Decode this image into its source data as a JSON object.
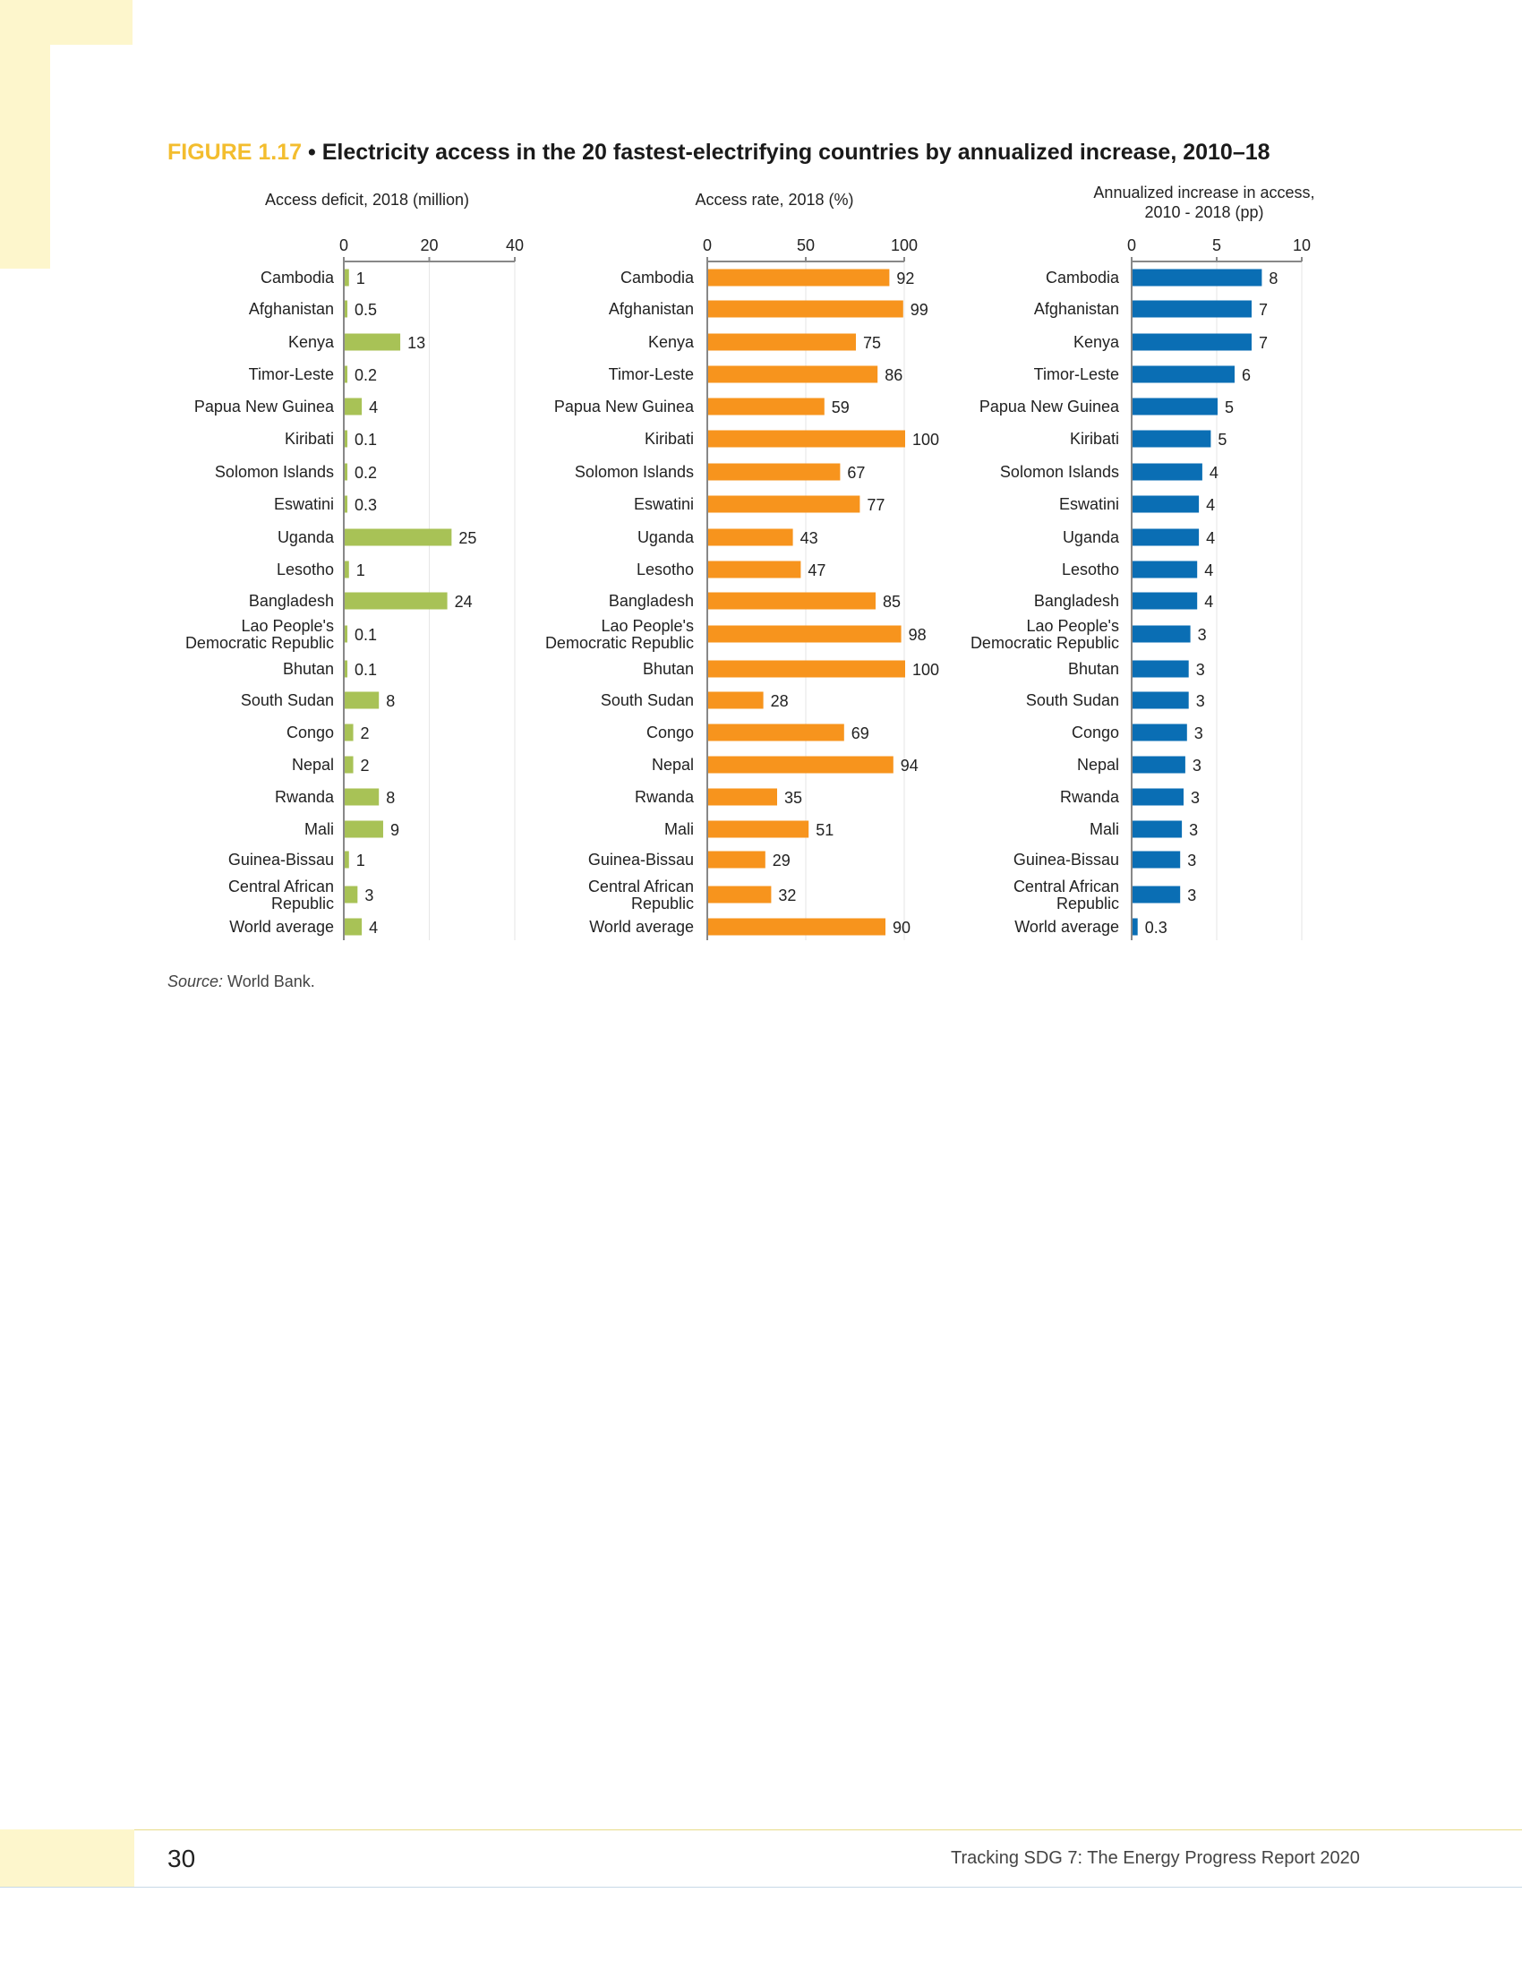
{
  "figure": {
    "number": "FIGURE 1.17",
    "separator": " • ",
    "title": "Electricity access in the 20 fastest-electrifying countries by annualized increase, 2010–18"
  },
  "colors": {
    "green": "#a8c256",
    "orange": "#f7941d",
    "blue": "#0a6eb4",
    "axis": "#888888",
    "grid": "#e6e6e6"
  },
  "categories": [
    "Cambodia",
    "Afghanistan",
    "Kenya",
    "Timor-Leste",
    "Papua New Guinea",
    "Kiribati",
    "Solomon Islands",
    "Eswatini",
    "Uganda",
    "Lesotho",
    "Bangladesh",
    "Lao People's Democratic Republic",
    "Bhutan",
    "South Sudan",
    "Congo",
    "Nepal",
    "Rwanda",
    "Mali",
    "Guinea-Bissau",
    "Central African Republic",
    "World average"
  ],
  "chart_data": [
    {
      "type": "bar",
      "orientation": "horizontal",
      "title": "Access deficit, 2018 (million)",
      "xlim": [
        0,
        40
      ],
      "ticks": [
        "0",
        "20",
        "40"
      ],
      "tick_values": [
        0,
        20,
        40
      ],
      "color": "#a8c256",
      "values": [
        1,
        0.5,
        13,
        0.2,
        4,
        0.1,
        0.2,
        0.3,
        25,
        1,
        24,
        0.1,
        0.1,
        8,
        2,
        2,
        8,
        9,
        1,
        3,
        4
      ],
      "labels": [
        "1",
        "0.5",
        "13",
        "0.2",
        "4",
        "0.1",
        "0.2",
        "0.3",
        "25",
        "1",
        "24",
        "0.1",
        "0.1",
        "8",
        "2",
        "2",
        "8",
        "9",
        "1",
        "3",
        "4"
      ]
    },
    {
      "type": "bar",
      "orientation": "horizontal",
      "title": "Access rate, 2018 (%)",
      "xlim": [
        0,
        100
      ],
      "ticks": [
        "0",
        "50",
        "100"
      ],
      "tick_values": [
        0,
        50,
        100
      ],
      "color": "#f7941d",
      "values": [
        92,
        99,
        75,
        86,
        59,
        100,
        67,
        77,
        43,
        47,
        85,
        98,
        100,
        28,
        69,
        94,
        35,
        51,
        29,
        32,
        90
      ],
      "labels": [
        "92",
        "99",
        "75",
        "86",
        "59",
        "100",
        "67",
        "77",
        "43",
        "47",
        "85",
        "98",
        "100",
        "28",
        "69",
        "94",
        "35",
        "51",
        "29",
        "32",
        "90"
      ]
    },
    {
      "type": "bar",
      "orientation": "horizontal",
      "title": "Annualized increase in access, 2010 - 2018 (pp)",
      "title_lines": [
        "Annualized increase in access,",
        "2010 - 2018 (pp)"
      ],
      "xlim": [
        0,
        10
      ],
      "ticks": [
        "0",
        "5",
        "10"
      ],
      "tick_values": [
        0,
        5,
        10
      ],
      "color": "#0a6eb4",
      "values": [
        7.6,
        7,
        7,
        6,
        5,
        4.6,
        4.1,
        3.9,
        3.9,
        3.8,
        3.8,
        3.4,
        3.3,
        3.3,
        3.2,
        3.1,
        3,
        2.9,
        2.8,
        2.8,
        0.3
      ],
      "labels": [
        "8",
        "7",
        "7",
        "6",
        "5",
        "5",
        "4",
        "4",
        "4",
        "4",
        "4",
        "3",
        "3",
        "3",
        "3",
        "3",
        "3",
        "3",
        "3",
        "3",
        "0.3"
      ]
    }
  ],
  "source": {
    "label": "Source:",
    "text": " World Bank."
  },
  "footer": {
    "page_number": "30",
    "report_title": "Tracking SDG 7: The Energy Progress Report 2020"
  }
}
